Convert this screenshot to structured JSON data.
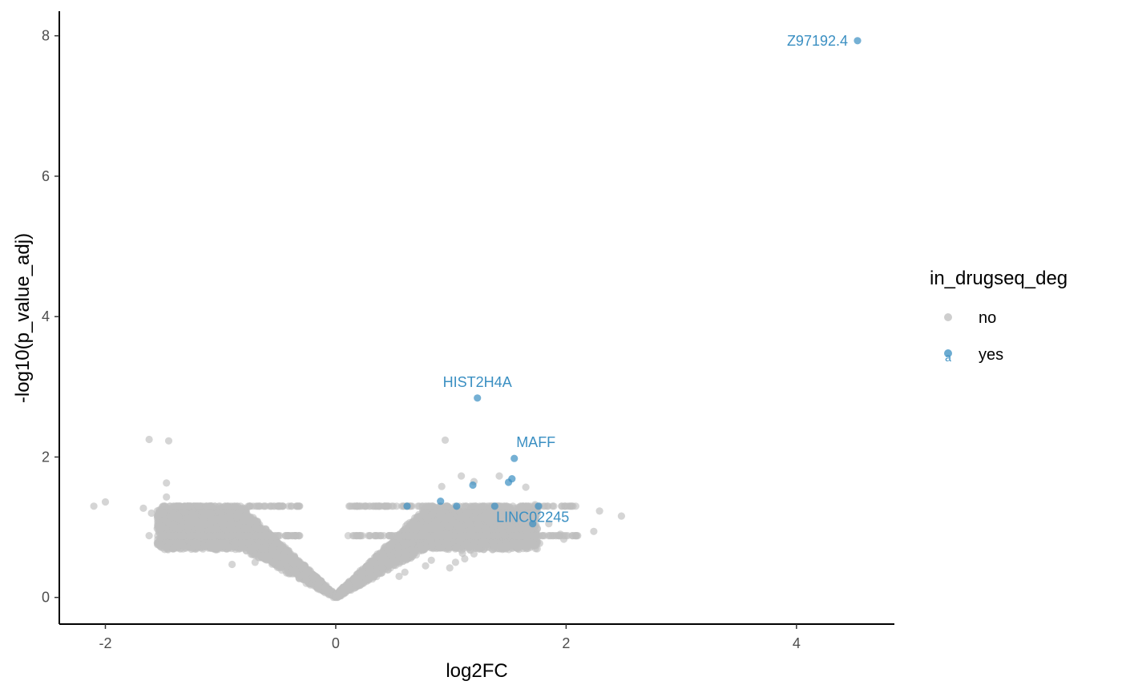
{
  "chart_data": {
    "type": "scatter",
    "title": "",
    "xlabel": "log2FC",
    "ylabel": "-log10(p_value_adj)",
    "xlim": [
      -2.4,
      4.85
    ],
    "ylim": [
      -0.38,
      8.35
    ],
    "x_ticks": [
      -2,
      0,
      2,
      4
    ],
    "x_tick_labels": [
      "-2",
      "0",
      "2",
      "4"
    ],
    "y_ticks": [
      0,
      2,
      4,
      6,
      8
    ],
    "y_tick_labels": [
      "0",
      "2",
      "4",
      "6",
      "8"
    ],
    "grid": false,
    "legend": {
      "title": "in_drugseq_deg",
      "position": "right",
      "entries": [
        {
          "label": "no",
          "color": "#BEBEBE"
        },
        {
          "label": "yes",
          "color": "#3A8FC2",
          "key_glyph": "a"
        }
      ]
    },
    "series": [
      {
        "name": "no",
        "color": "#BEBEBE",
        "points": [
          [
            -2.1,
            1.3
          ],
          [
            -2.0,
            1.36
          ],
          [
            -1.67,
            1.27
          ],
          [
            -1.62,
            2.25
          ],
          [
            -1.45,
            2.23
          ],
          [
            -1.47,
            1.63
          ],
          [
            -1.47,
            1.43
          ],
          [
            -1.62,
            0.88
          ],
          [
            -1.55,
            0.98
          ],
          [
            -1.35,
            0.76
          ],
          [
            -1.1,
            0.74
          ],
          [
            -0.9,
            0.47
          ],
          [
            -0.7,
            0.5
          ],
          [
            -1.6,
            1.2
          ],
          [
            -1.5,
            1.3
          ],
          [
            0.95,
            2.24
          ],
          [
            0.92,
            1.58
          ],
          [
            1.09,
            1.73
          ],
          [
            1.2,
            1.65
          ],
          [
            1.42,
            1.73
          ],
          [
            1.65,
            1.57
          ],
          [
            1.77,
            0.77
          ],
          [
            1.66,
            0.85
          ],
          [
            1.98,
            0.83
          ],
          [
            2.24,
            0.94
          ],
          [
            2.29,
            1.23
          ],
          [
            2.48,
            1.16
          ],
          [
            2.1,
            0.88
          ],
          [
            0.99,
            0.42
          ],
          [
            1.04,
            0.5
          ],
          [
            1.12,
            0.55
          ],
          [
            1.2,
            0.62
          ],
          [
            0.55,
            0.3
          ],
          [
            0.6,
            0.36
          ],
          [
            0.78,
            0.45
          ],
          [
            0.83,
            0.53
          ],
          [
            1.1,
            0.63
          ],
          [
            1.3,
            0.75
          ],
          [
            1.48,
            1.3
          ],
          [
            1.62,
            1.28
          ],
          [
            1.73,
            1.32
          ],
          [
            1.55,
            1.13
          ],
          [
            1.85,
            1.05
          ],
          [
            1.95,
            0.9
          ]
        ],
        "bulk_left_x_range": [
          -1.55,
          0
        ],
        "bulk_right_x_range": [
          0,
          1.75
        ],
        "bulk_y_range": [
          0,
          1.31
        ]
      },
      {
        "name": "yes",
        "color": "#3A8FC2",
        "points": [
          [
            4.53,
            7.93
          ],
          [
            1.23,
            2.84
          ],
          [
            1.55,
            1.98
          ],
          [
            1.53,
            1.69
          ],
          [
            1.5,
            1.64
          ],
          [
            1.19,
            1.6
          ],
          [
            1.76,
            1.3
          ],
          [
            1.38,
            1.3
          ],
          [
            0.62,
            1.3
          ],
          [
            0.91,
            1.37
          ],
          [
            1.71,
            1.05
          ],
          [
            1.05,
            1.3
          ]
        ]
      }
    ],
    "annotations": [
      {
        "text": "Z97192.4",
        "x": 4.53,
        "y": 7.93
      },
      {
        "text": "HIST2H4A",
        "x": 1.23,
        "y": 2.84
      },
      {
        "text": "MAFF",
        "x": 1.55,
        "y": 1.98
      },
      {
        "text": "LINC02245",
        "x": 1.71,
        "y": 1.05
      }
    ]
  }
}
